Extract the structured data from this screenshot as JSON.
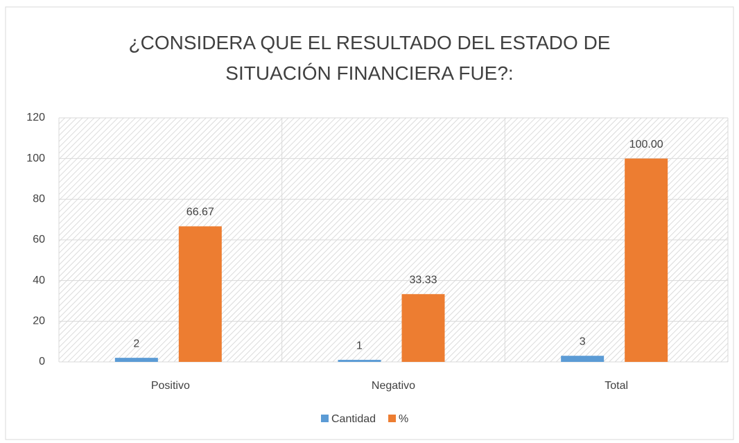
{
  "chart_data": {
    "type": "bar",
    "title": "¿CONSIDERA QUE EL RESULTADO DEL ESTADO DE SITUACIÓN FINANCIERA FUE?:",
    "categories": [
      "Positivo",
      "Negativo",
      "Total"
    ],
    "series": [
      {
        "name": "Cantidad",
        "color": "#5b9bd5",
        "values": [
          2,
          1,
          3
        ]
      },
      {
        "name": "%",
        "color": "#ed7d31",
        "values": [
          66.67,
          33.33,
          100
        ],
        "value_labels": [
          "66.67",
          "33.33",
          "100.00"
        ]
      }
    ],
    "ylim": [
      0,
      120
    ],
    "yticks": [
      0,
      20,
      40,
      60,
      80,
      100,
      120
    ],
    "grid": true,
    "legend": "bottom"
  }
}
